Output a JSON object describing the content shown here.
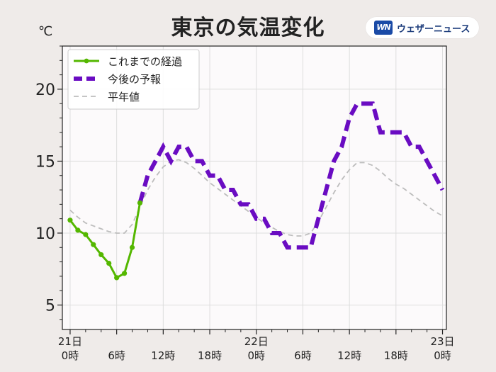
{
  "header": {
    "title": "東京の気温変化",
    "unit": "℃",
    "logo_mark": "WN",
    "logo_text": "ウェザーニュース"
  },
  "colors": {
    "observed": "#54b700",
    "forecast": "#6a0cc2",
    "normal": "#bdbdbd",
    "plot_bg": "#fcfafb",
    "grid": "#dddddd"
  },
  "chart_data": {
    "type": "line",
    "ylim": [
      3.3,
      23
    ],
    "yticks": [
      5,
      10,
      15,
      20
    ],
    "xlim_hours": [
      -1,
      48.5
    ],
    "x_ticks": [
      {
        "hour": 0,
        "line1": "21日",
        "line2": "0時"
      },
      {
        "hour": 6,
        "line1": "",
        "line2": "6時"
      },
      {
        "hour": 12,
        "line1": "",
        "line2": "12時"
      },
      {
        "hour": 18,
        "line1": "",
        "line2": "18時"
      },
      {
        "hour": 24,
        "line1": "22日",
        "line2": "0時"
      },
      {
        "hour": 30,
        "line1": "",
        "line2": "6時"
      },
      {
        "hour": 36,
        "line1": "",
        "line2": "12時"
      },
      {
        "hour": 42,
        "line1": "",
        "line2": "18時"
      },
      {
        "hour": 48,
        "line1": "23日",
        "line2": "0時"
      }
    ],
    "grid": true,
    "legend_position": "top-left",
    "series": [
      {
        "name": "これまでの経過",
        "style": "observed",
        "x": [
          0,
          1,
          2,
          3,
          4,
          5,
          6,
          7,
          8,
          9
        ],
        "y": [
          10.9,
          10.2,
          9.9,
          9.2,
          8.5,
          7.9,
          6.9,
          7.2,
          9.0,
          12.1
        ]
      },
      {
        "name": "今後の予報",
        "style": "forecast",
        "x": [
          9,
          10,
          11,
          12,
          13,
          14,
          15,
          16,
          17,
          18,
          19,
          20,
          21,
          22,
          23,
          24,
          25,
          26,
          27,
          28,
          29,
          30,
          31,
          32,
          33,
          34,
          35,
          36,
          37,
          38,
          39,
          40,
          41,
          42,
          43,
          44,
          45,
          46,
          47,
          48
        ],
        "y": [
          12.1,
          14.0,
          15.0,
          16.0,
          15.0,
          16.0,
          16.0,
          15.0,
          15.0,
          14.0,
          14.0,
          13.0,
          13.0,
          12.0,
          12.0,
          11.0,
          11.0,
          10.0,
          10.0,
          9.0,
          9.0,
          9.0,
          9.0,
          11.0,
          13.0,
          15.0,
          16.0,
          18.0,
          19.0,
          19.0,
          19.0,
          17.0,
          17.0,
          17.0,
          17.0,
          16.0,
          16.0,
          15.0,
          14.0,
          13.0
        ]
      },
      {
        "name": "平年値",
        "style": "normal",
        "x": [
          0,
          1,
          2,
          3,
          4,
          5,
          6,
          7,
          8,
          9,
          10,
          11,
          12,
          13,
          14,
          15,
          16,
          17,
          18,
          19,
          20,
          21,
          22,
          23,
          24,
          25,
          26,
          27,
          28,
          29,
          30,
          31,
          32,
          33,
          34,
          35,
          36,
          37,
          38,
          39,
          40,
          41,
          42,
          43,
          44,
          45,
          46,
          47,
          48
        ],
        "y": [
          11.6,
          11.1,
          10.7,
          10.5,
          10.3,
          10.1,
          10.0,
          10.0,
          10.6,
          11.8,
          13.0,
          13.9,
          14.6,
          15.0,
          15.1,
          14.9,
          14.5,
          14.0,
          13.5,
          13.1,
          12.7,
          12.3,
          11.9,
          11.5,
          11.1,
          10.7,
          10.4,
          10.1,
          9.9,
          9.8,
          9.8,
          10.0,
          10.8,
          11.8,
          12.8,
          13.7,
          14.4,
          14.9,
          14.9,
          14.7,
          14.3,
          13.8,
          13.4,
          13.1,
          12.7,
          12.3,
          11.9,
          11.5,
          11.2
        ]
      }
    ]
  }
}
